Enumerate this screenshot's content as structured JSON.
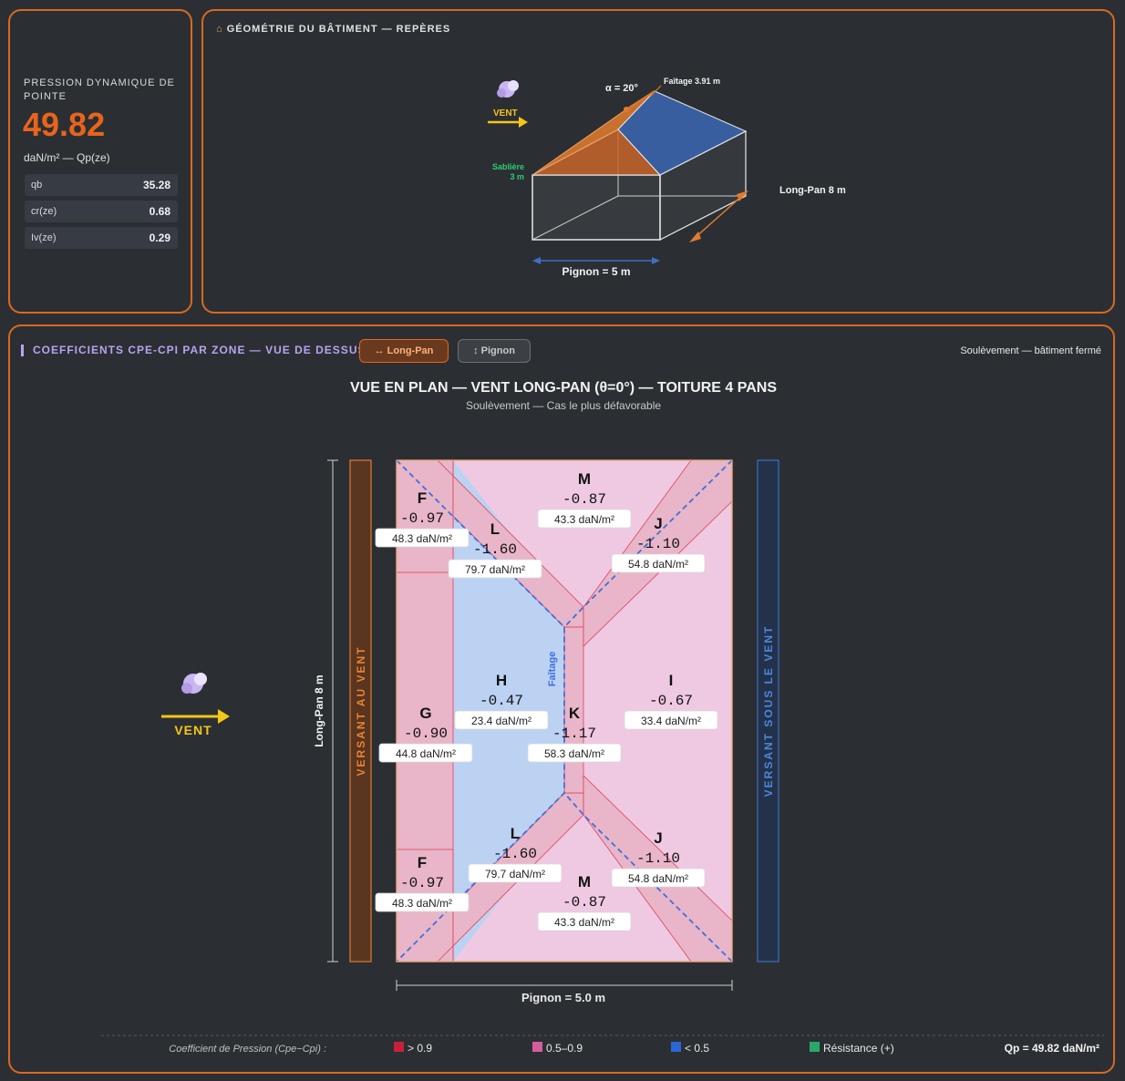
{
  "qp_panel": {
    "title": "PRESSION DYNAMIQUE DE POINTE",
    "value": "49.82",
    "unit": "daN/m² — Qp(ze)",
    "rows": [
      {
        "label": "qb",
        "value": "35.28"
      },
      {
        "label": "cr(ze)",
        "value": "0.68"
      },
      {
        "label": "Iv(ze)",
        "value": "0.29"
      }
    ]
  },
  "geometry": {
    "title": "GÉOMÉTRIE DU BÂTIMENT — REPÈRES",
    "title_icon": "house-icon",
    "wind_label": "VENT",
    "alpha_label": "α = 20°",
    "faitage_label": "Faîtage 3.91 m",
    "sabliere_label_1": "Sablière",
    "sabliere_label_2": "3 m",
    "longpan_label": "Long-Pan 8 m",
    "pignon_label": "Pignon = 5 m",
    "colors": {
      "orange": "#e07a2e",
      "blue": "#3d6fc4",
      "green": "#2ecc71"
    }
  },
  "zones_panel": {
    "title": "COEFFICIENTS CPE-CPI PAR ZONE — VUE DE DESSUS",
    "tabs": [
      {
        "icon": "↔",
        "label": "Long-Pan",
        "active": true
      },
      {
        "icon": "↕",
        "label": "Pignon",
        "active": false
      }
    ],
    "case_label": "Soulèvement — bâtiment fermé",
    "plan_title": "VUE EN PLAN — VENT LONG-PAN (θ=0°) — TOITURE 4 PANS",
    "plan_subtitle": "Soulèvement — Cas le plus défavorable",
    "wind_label": "VENT",
    "left_band": "VERSANT AU VENT",
    "right_band": "VERSANT SOUS LE VENT",
    "dim_vertical": "Long-Pan 8 m",
    "dim_horizontal": "Pignon = 5.0 m",
    "ridge_label": "Faîtage",
    "zones": [
      {
        "id": "F",
        "letter": "F",
        "coef": "-0.97",
        "pressure": "48.3 daN/m²"
      },
      {
        "id": "L",
        "letter": "L",
        "coef": "-1.60",
        "pressure": "79.7 daN/m²"
      },
      {
        "id": "M",
        "letter": "M",
        "coef": "-0.87",
        "pressure": "43.3 daN/m²"
      },
      {
        "id": "J",
        "letter": "J",
        "coef": "-1.10",
        "pressure": "54.8 daN/m²"
      },
      {
        "id": "G",
        "letter": "G",
        "coef": "-0.90",
        "pressure": "44.8 daN/m²"
      },
      {
        "id": "H",
        "letter": "H",
        "coef": "-0.47",
        "pressure": "23.4 daN/m²"
      },
      {
        "id": "K",
        "letter": "K",
        "coef": "-1.17",
        "pressure": "58.3 daN/m²"
      },
      {
        "id": "I",
        "letter": "I",
        "coef": "-0.67",
        "pressure": "33.4 daN/m²"
      },
      {
        "id": "F2",
        "letter": "F",
        "coef": "-0.97",
        "pressure": "48.3 daN/m²"
      },
      {
        "id": "L2",
        "letter": "L",
        "coef": "-1.60",
        "pressure": "79.7 daN/m²"
      },
      {
        "id": "M2",
        "letter": "M",
        "coef": "-0.87",
        "pressure": "43.3 daN/m²"
      },
      {
        "id": "J2",
        "letter": "J",
        "coef": "-1.10",
        "pressure": "54.8 daN/m²"
      }
    ],
    "legend": {
      "title": "Coefficient de Pression (Cpe−Cpi) :",
      "items": [
        {
          "label": "> 0.9",
          "color": "#c8203c"
        },
        {
          "label": "0.5–0.9",
          "color": "#d45d9c"
        },
        {
          "label": "< 0.5",
          "color": "#2a68d8"
        },
        {
          "label": "Résistance (+)",
          "color": "#27a86a"
        }
      ],
      "qp_summary": "Qp = 49.82 daN/m²"
    }
  }
}
